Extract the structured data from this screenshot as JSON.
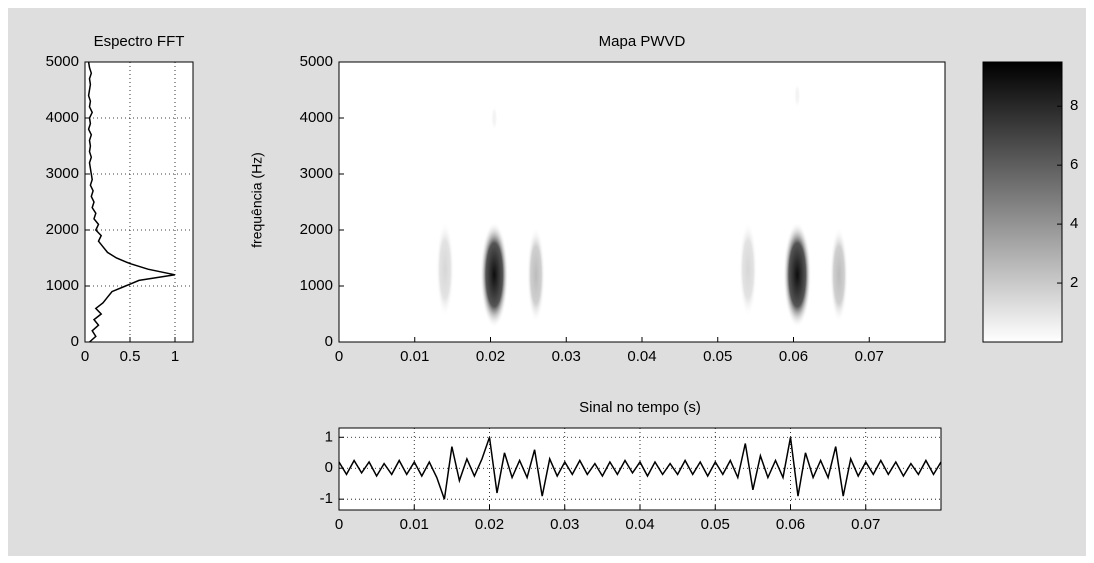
{
  "chart_data": [
    {
      "type": "line",
      "orientation": "horizontal",
      "title": "Espectro FFT",
      "color": "#000000",
      "grid": true,
      "y": [
        0,
        100,
        200,
        300,
        400,
        500,
        600,
        700,
        800,
        900,
        1000,
        1100,
        1200,
        1300,
        1400,
        1500,
        1600,
        1700,
        1800,
        1900,
        2000,
        2100,
        2200,
        2300,
        2400,
        2500,
        2600,
        2700,
        2800,
        2900,
        3000,
        3100,
        3200,
        3300,
        3400,
        3500,
        3600,
        3700,
        3800,
        3900,
        4000,
        4100,
        4200,
        4300,
        4400,
        4500,
        4600,
        4700,
        4800,
        4900,
        5000
      ],
      "values": [
        0.05,
        0.12,
        0.08,
        0.15,
        0.1,
        0.18,
        0.12,
        0.2,
        0.25,
        0.3,
        0.45,
        0.6,
        1.0,
        0.7,
        0.5,
        0.35,
        0.25,
        0.2,
        0.15,
        0.18,
        0.12,
        0.15,
        0.1,
        0.12,
        0.08,
        0.1,
        0.07,
        0.09,
        0.06,
        0.08,
        0.07,
        0.06,
        0.05,
        0.07,
        0.05,
        0.06,
        0.05,
        0.07,
        0.04,
        0.06,
        0.05,
        0.08,
        0.05,
        0.06,
        0.04,
        0.05,
        0.06,
        0.05,
        0.07,
        0.05,
        0.04
      ],
      "xlim": [
        0,
        1.2
      ],
      "xticks": [
        0,
        0.5,
        1
      ],
      "ylim": [
        0,
        5000
      ],
      "yticks": [
        0,
        1000,
        2000,
        3000,
        4000,
        5000
      ]
    },
    {
      "type": "heatmap",
      "title": "Mapa PWVD",
      "ylabel": "frequência (Hz)",
      "x": [
        0.014,
        0.0205,
        0.026,
        0.054,
        0.0605,
        0.066,
        0.0205,
        0.0605
      ],
      "y": [
        1300,
        1200,
        1200,
        1300,
        1200,
        1200,
        4000,
        4400
      ],
      "values": [
        1.5,
        9,
        2.5,
        1.5,
        9,
        2.5,
        0.5,
        0.5
      ],
      "xlim": [
        0,
        0.08
      ],
      "xticks": [
        0,
        0.01,
        0.02,
        0.03,
        0.04,
        0.05,
        0.06,
        0.07
      ],
      "ylim": [
        0,
        5000
      ],
      "yticks": [
        0,
        1000,
        2000,
        3000,
        4000,
        5000
      ],
      "clim": [
        0,
        9.5
      ],
      "cticks": [
        2,
        4,
        6,
        8
      ]
    },
    {
      "type": "line",
      "title": "Sinal no tempo (s)",
      "color": "#000000",
      "grid": true,
      "x": [
        0,
        0.001,
        0.002,
        0.003,
        0.004,
        0.005,
        0.006,
        0.007,
        0.008,
        0.009,
        0.01,
        0.011,
        0.012,
        0.013,
        0.014,
        0.015,
        0.016,
        0.017,
        0.018,
        0.019,
        0.02,
        0.021,
        0.022,
        0.023,
        0.024,
        0.025,
        0.026,
        0.027,
        0.028,
        0.029,
        0.03,
        0.031,
        0.032,
        0.033,
        0.034,
        0.035,
        0.036,
        0.037,
        0.038,
        0.039,
        0.04,
        0.041,
        0.042,
        0.043,
        0.044,
        0.045,
        0.046,
        0.047,
        0.048,
        0.049,
        0.05,
        0.051,
        0.052,
        0.053,
        0.054,
        0.055,
        0.056,
        0.057,
        0.058,
        0.059,
        0.06,
        0.061,
        0.062,
        0.063,
        0.064,
        0.065,
        0.066,
        0.067,
        0.068,
        0.069,
        0.07,
        0.071,
        0.072,
        0.073,
        0.074,
        0.075,
        0.076,
        0.077,
        0.078,
        0.079,
        0.08
      ],
      "values": [
        0.2,
        -0.2,
        0.25,
        -0.15,
        0.2,
        -0.25,
        0.15,
        -0.2,
        0.25,
        -0.2,
        0.2,
        -0.25,
        0.2,
        -0.3,
        -1.0,
        0.7,
        -0.4,
        0.3,
        -0.25,
        0.3,
        1.0,
        -0.8,
        0.5,
        -0.3,
        0.25,
        -0.3,
        0.6,
        -0.9,
        0.3,
        -0.25,
        0.2,
        -0.2,
        0.25,
        -0.2,
        0.15,
        -0.25,
        0.2,
        -0.2,
        0.25,
        -0.15,
        0.2,
        -0.25,
        0.2,
        -0.2,
        0.15,
        -0.2,
        0.25,
        -0.2,
        0.2,
        -0.25,
        0.2,
        -0.2,
        0.25,
        -0.3,
        0.8,
        -0.7,
        0.4,
        -0.3,
        0.25,
        -0.3,
        1.0,
        -0.9,
        0.5,
        -0.3,
        0.25,
        -0.3,
        0.7,
        -0.9,
        0.3,
        -0.25,
        0.2,
        -0.2,
        0.25,
        -0.2,
        0.2,
        -0.25,
        0.15,
        -0.2,
        0.25,
        -0.2,
        0.2
      ],
      "xlim": [
        0,
        0.08
      ],
      "xticks": [
        0,
        0.01,
        0.02,
        0.03,
        0.04,
        0.05,
        0.06,
        0.07
      ],
      "ylim": [
        -1.35,
        1.3
      ],
      "yticks": [
        -1,
        0,
        1
      ]
    }
  ]
}
